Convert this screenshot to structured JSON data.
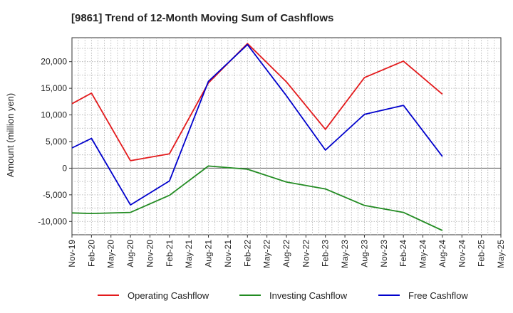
{
  "chart_data": {
    "type": "line",
    "title": "[9861]  Trend of 12-Month Moving Sum of Cashflows",
    "xlabel": "",
    "ylabel": "Amount (million yen)",
    "categories": [
      "Nov-19",
      "Feb-20",
      "May-20",
      "Aug-20",
      "Nov-20",
      "Feb-21",
      "May-21",
      "Aug-21",
      "Nov-21",
      "Feb-22",
      "May-22",
      "Aug-22",
      "Nov-22",
      "Feb-23",
      "May-23",
      "Aug-23",
      "Nov-23",
      "Feb-24",
      "May-24",
      "Aug-24",
      "Nov-24",
      "Feb-25",
      "May-25"
    ],
    "ylim": [
      -12500,
      24500
    ],
    "yticks": [
      -10000,
      -5000,
      0,
      5000,
      10000,
      15000,
      20000
    ],
    "ytick_labels": [
      "-10,000",
      "-5,000",
      "0",
      "5,000",
      "10,000",
      "15,000",
      "20,000"
    ],
    "grid": true,
    "legend_position": "bottom",
    "series": [
      {
        "name": "Operating Cashflow",
        "color": "#e31a1c",
        "x": [
          "Nov-19",
          "Feb-20",
          "Aug-20",
          "Feb-21",
          "Aug-21",
          "Feb-22",
          "Aug-22",
          "Feb-23",
          "Aug-23",
          "Feb-24",
          "Aug-24"
        ],
        "values": [
          12100,
          14100,
          1400,
          2700,
          16000,
          23400,
          16200,
          7300,
          17000,
          20100,
          13900
        ]
      },
      {
        "name": "Investing Cashflow",
        "color": "#228b22",
        "x": [
          "Nov-19",
          "Feb-20",
          "Aug-20",
          "Feb-21",
          "Aug-21",
          "Feb-22",
          "Aug-22",
          "Feb-23",
          "Aug-23",
          "Feb-24",
          "Aug-24"
        ],
        "values": [
          -8400,
          -8500,
          -8300,
          -5100,
          400,
          -200,
          -2600,
          -3900,
          -7000,
          -8300,
          -11700
        ]
      },
      {
        "name": "Free Cashflow",
        "color": "#0000cc",
        "x": [
          "Nov-19",
          "Feb-20",
          "Aug-20",
          "Feb-21",
          "Aug-21",
          "Feb-22",
          "Aug-22",
          "Feb-23",
          "Aug-23",
          "Feb-24",
          "Aug-24"
        ],
        "values": [
          3800,
          5600,
          -6900,
          -2400,
          16300,
          23200,
          13600,
          3400,
          10100,
          11800,
          2200
        ]
      }
    ]
  }
}
